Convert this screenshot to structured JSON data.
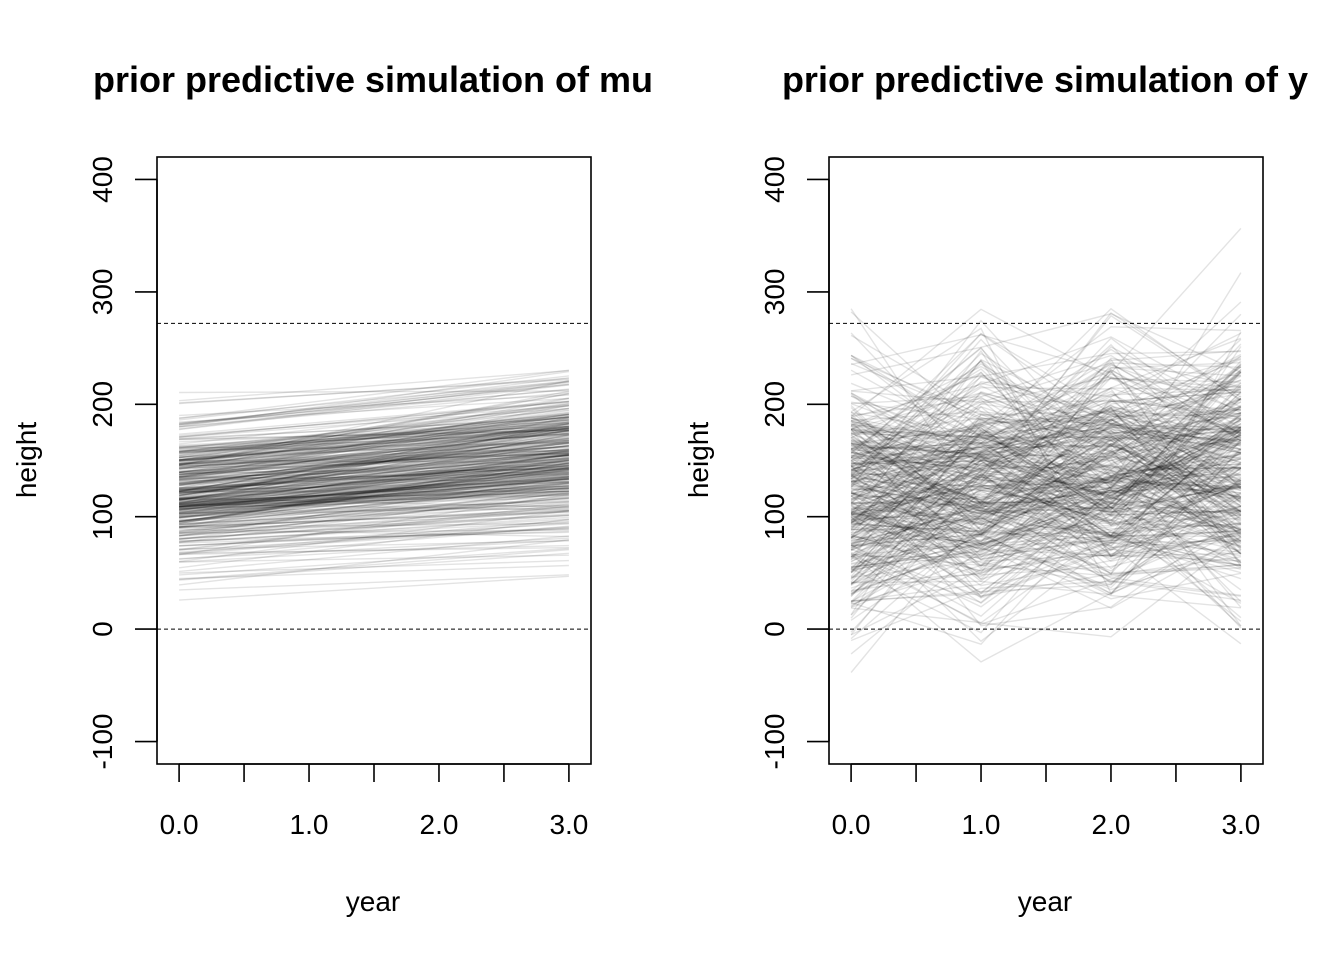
{
  "chart_data": [
    {
      "type": "line",
      "title": "prior predictive simulation of mu",
      "xlabel": "year",
      "ylabel": "height",
      "x": [
        0,
        1,
        2,
        3
      ],
      "xlim": [
        -0.17,
        3.17
      ],
      "ylim": [
        -120,
        420
      ],
      "x_ticks": [
        0,
        0.5,
        1,
        1.5,
        2,
        2.5,
        3
      ],
      "x_tick_labels": [
        {
          "value": 0,
          "label": "0.0"
        },
        {
          "value": 1,
          "label": "1.0"
        },
        {
          "value": 2,
          "label": "2.0"
        },
        {
          "value": 3,
          "label": "3.0"
        }
      ],
      "y_ticks": [
        {
          "value": -100,
          "label": "-100"
        },
        {
          "value": 0,
          "label": "0"
        },
        {
          "value": 100,
          "label": "100"
        },
        {
          "value": 200,
          "label": "200"
        },
        {
          "value": 300,
          "label": "300"
        },
        {
          "value": 400,
          "label": "400"
        }
      ],
      "reference_lines": [
        0,
        272
      ],
      "grid": false,
      "simulation": {
        "n_lines": 400,
        "intercept_mean": 118,
        "intercept_sd": 32,
        "slope_mean": 10,
        "slope_sd": 5,
        "noise_sd": 0
      },
      "series_color": "rgba(0,0,0,0.11)"
    },
    {
      "type": "line",
      "title": "prior predictive simulation of y",
      "xlabel": "year",
      "ylabel": "height",
      "x": [
        0,
        1,
        2,
        3
      ],
      "xlim": [
        -0.17,
        3.17
      ],
      "ylim": [
        -120,
        420
      ],
      "x_ticks": [
        0,
        0.5,
        1,
        1.5,
        2,
        2.5,
        3
      ],
      "x_tick_labels": [
        {
          "value": 0,
          "label": "0.0"
        },
        {
          "value": 1,
          "label": "1.0"
        },
        {
          "value": 2,
          "label": "2.0"
        },
        {
          "value": 3,
          "label": "3.0"
        }
      ],
      "y_ticks": [
        {
          "value": -100,
          "label": "-100"
        },
        {
          "value": 0,
          "label": "0"
        },
        {
          "value": 100,
          "label": "100"
        },
        {
          "value": 200,
          "label": "200"
        },
        {
          "value": 300,
          "label": "300"
        },
        {
          "value": 400,
          "label": "400"
        }
      ],
      "reference_lines": [
        0,
        272
      ],
      "grid": false,
      "simulation": {
        "n_lines": 400,
        "intercept_mean": 118,
        "intercept_sd": 32,
        "slope_mean": 10,
        "slope_sd": 5,
        "noise_sd": 45
      },
      "series_color": "rgba(0,0,0,0.11)"
    }
  ]
}
